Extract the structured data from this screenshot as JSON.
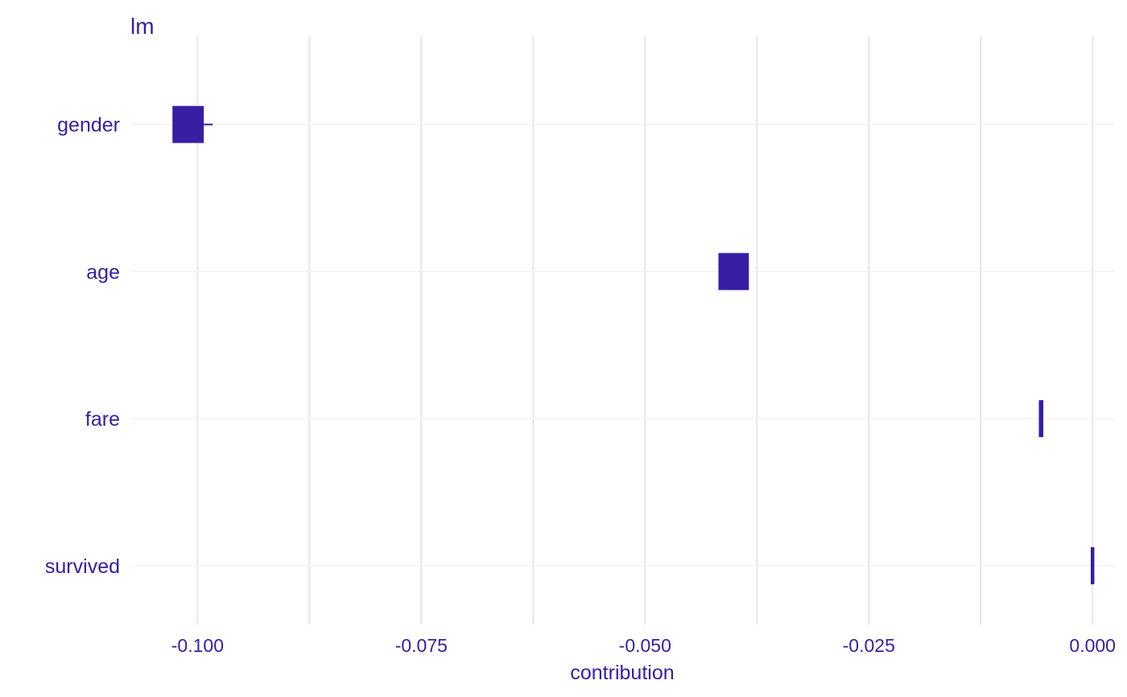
{
  "chart_data": {
    "type": "bar",
    "title": "lm",
    "xlabel": "contribution",
    "ylabel": "",
    "xlim": [
      -0.1075,
      0.0025
    ],
    "x_ticks": [
      -0.1,
      -0.075,
      -0.05,
      -0.025,
      0.0
    ],
    "x_tick_labels": [
      "-0.100",
      "-0.075",
      "-0.050",
      "-0.025",
      "0.000"
    ],
    "grid": true,
    "legend": "none",
    "categories": [
      "gender",
      "age",
      "fare",
      "survived"
    ],
    "bars": [
      {
        "name": "gender",
        "min": -0.1028,
        "max": -0.0993,
        "whisker": -0.0983
      },
      {
        "name": "age",
        "min": -0.0418,
        "max": -0.0384,
        "whisker": -0.0384
      },
      {
        "name": "fare",
        "min": -0.006,
        "max": -0.0055,
        "whisker": -0.0059
      },
      {
        "name": "survived",
        "min": -0.0002,
        "max": 0.0002,
        "whisker": 0.0
      }
    ],
    "colors": {
      "bar": "#371ea3",
      "text": "#371ea3",
      "grid_major": "#e6e6e6",
      "grid_minor": "#f0f0f0"
    }
  }
}
